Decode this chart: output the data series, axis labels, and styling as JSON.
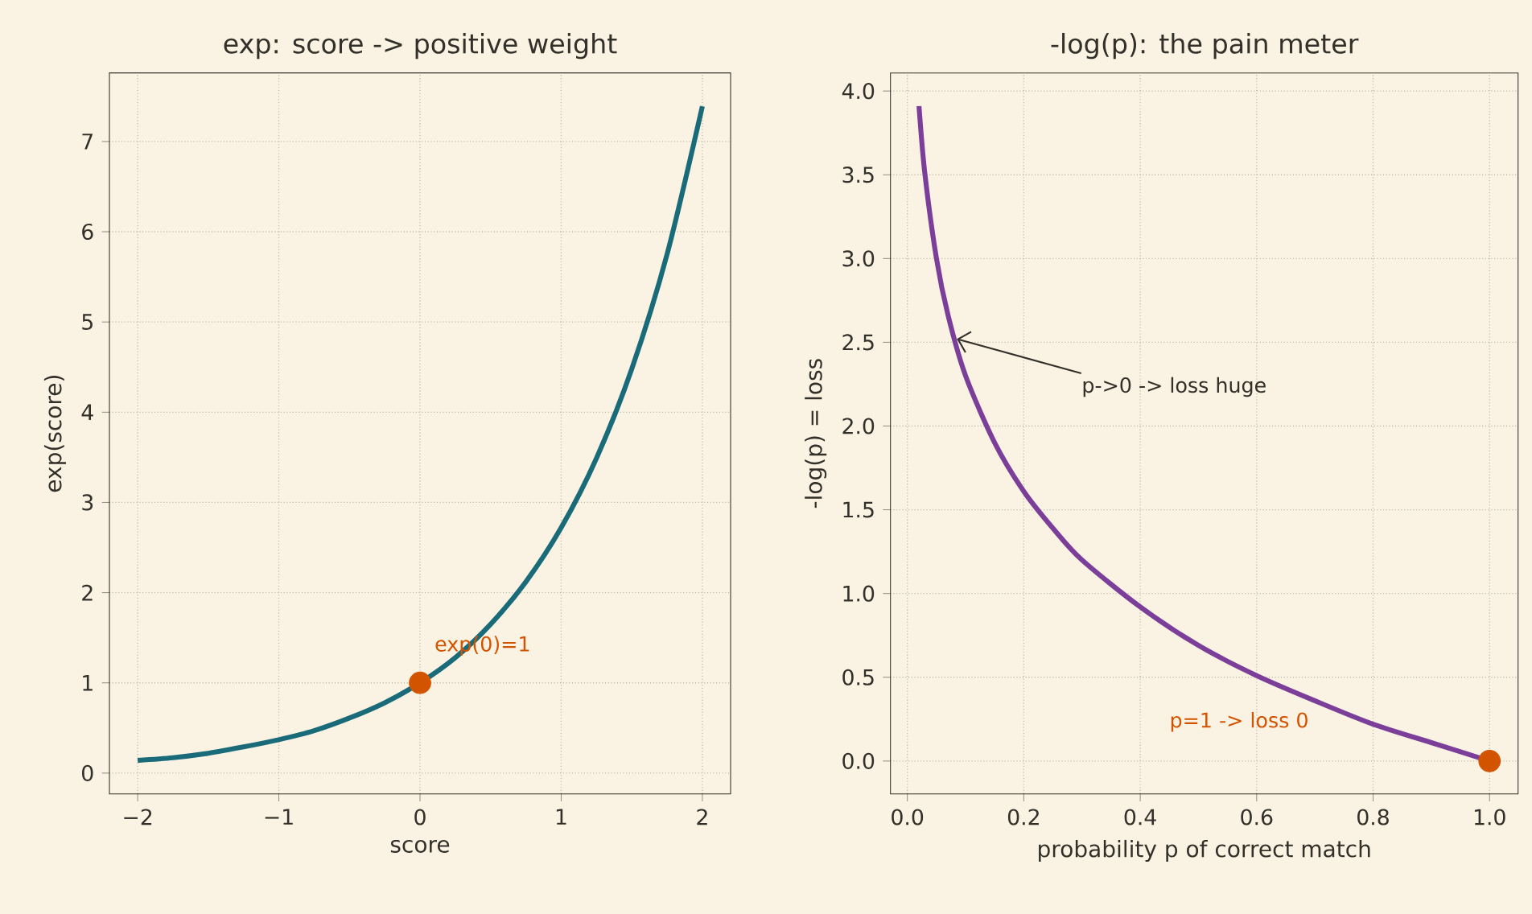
{
  "chart_data": [
    {
      "type": "line",
      "title": "exp: score -> positive weight",
      "xlabel": "score",
      "ylabel": "exp(score)",
      "series": [
        {
          "color": "#1a6b7a",
          "x": [
            -2,
            -1.75,
            -1.5,
            -1.25,
            -1,
            -0.75,
            -0.5,
            -0.25,
            0,
            0.25,
            0.5,
            0.75,
            1,
            1.25,
            1.5,
            1.75,
            2
          ],
          "values": [
            0.14,
            0.17,
            0.22,
            0.29,
            0.37,
            0.47,
            0.61,
            0.78,
            1.0,
            1.28,
            1.65,
            2.12,
            2.72,
            3.49,
            4.48,
            5.75,
            7.39
          ]
        },
        {
          "type": "scatter",
          "color": "#d35400",
          "marker": "circle",
          "x": [
            0
          ],
          "values": [
            1
          ]
        }
      ],
      "annotations": [
        {
          "text": "exp(0)=1",
          "x": 0,
          "y": 1
        }
      ],
      "xlim": [
        -2.2,
        2.2
      ],
      "ylim": [
        -0.23,
        7.76
      ],
      "xticks": [
        {
          "value": -2,
          "label": "−2"
        },
        {
          "value": -1,
          "label": "−1"
        },
        0,
        1,
        2
      ],
      "yticks": [
        0,
        1,
        2,
        3,
        4,
        5,
        6,
        7
      ],
      "grid": true
    },
    {
      "type": "line",
      "title": "-log(p): the pain meter",
      "xlabel": "probability p of correct match",
      "ylabel": "-log(p) = loss",
      "series": [
        {
          "color": "#7b3f9a",
          "x": [
            0.02,
            0.03,
            0.05,
            0.07,
            0.1,
            0.15,
            0.2,
            0.25,
            0.3,
            0.4,
            0.5,
            0.6,
            0.7,
            0.8,
            0.9,
            1.0
          ],
          "values": [
            3.91,
            3.51,
            3.0,
            2.66,
            2.3,
            1.9,
            1.61,
            1.39,
            1.2,
            0.92,
            0.69,
            0.51,
            0.36,
            0.22,
            0.11,
            0.0
          ]
        },
        {
          "type": "scatter",
          "color": "#d35400",
          "marker": "circle",
          "x": [
            1.0
          ],
          "values": [
            0.0
          ]
        }
      ],
      "annotations": [
        {
          "text": "p->0 -> loss huge",
          "x": 0.085,
          "y": 2.52
        },
        "p=1 -> loss 0"
      ],
      "xlim": [
        -0.029,
        1.049
      ],
      "ylim": [
        -0.196,
        4.108
      ],
      "xticks": [
        {
          "value": 0,
          "label": "0.0"
        },
        0.2,
        0.4,
        0.6,
        0.8,
        {
          "value": 1,
          "label": "1.0"
        }
      ],
      "yticks": [
        {
          "value": 0,
          "label": "0.0"
        },
        0.5,
        {
          "value": 1,
          "label": "1.0"
        },
        1.5,
        {
          "value": 2,
          "label": "2.0"
        },
        2.5,
        {
          "value": 3,
          "label": "3.0"
        },
        3.5,
        {
          "value": 4,
          "label": "4.0"
        }
      ],
      "grid": true
    }
  ]
}
